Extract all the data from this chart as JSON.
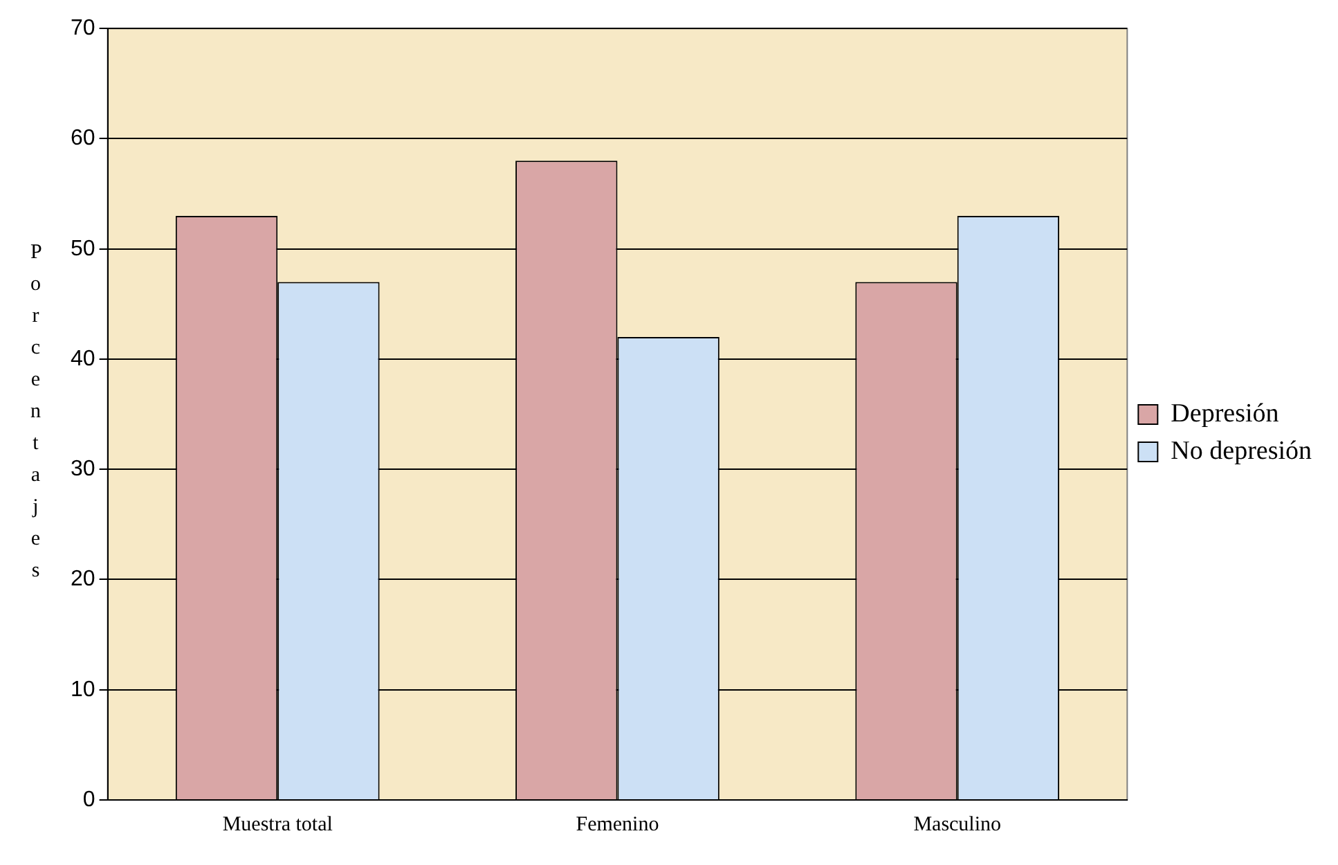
{
  "chart_data": {
    "type": "bar",
    "ylabel": "Porcentajes",
    "categories": [
      "Muestra total",
      "Femenino",
      "Masculino"
    ],
    "series": [
      {
        "name": "Depresión",
        "color": "#d9a6a6",
        "values": [
          53,
          58,
          47
        ]
      },
      {
        "name": "No depresión",
        "color": "#cce0f5",
        "values": [
          47,
          42,
          53
        ]
      }
    ],
    "ylim": [
      0,
      70
    ],
    "yticks": [
      0,
      10,
      20,
      30,
      40,
      50,
      60,
      70
    ],
    "grid": "y",
    "legend": "right"
  }
}
